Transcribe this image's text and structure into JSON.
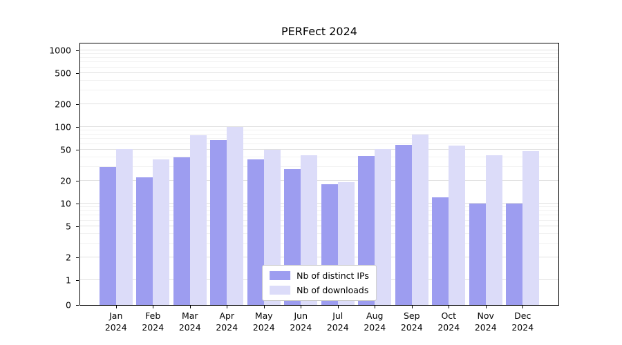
{
  "title": "PERFect 2024",
  "chart_data": {
    "type": "bar",
    "title": "PERFect 2024",
    "xlabel": "",
    "ylabel": "",
    "yscale": "symlog",
    "grid": true,
    "legend_position": "lower center",
    "ylim": [
      0,
      1200
    ],
    "y_ticks": [
      0,
      1,
      2,
      5,
      10,
      20,
      50,
      100,
      200,
      500,
      1000
    ],
    "categories": [
      "Jan 2024",
      "Feb 2024",
      "Mar 2024",
      "Apr 2024",
      "May 2024",
      "Jun 2024",
      "Jul 2024",
      "Aug 2024",
      "Sep 2024",
      "Oct 2024",
      "Nov 2024",
      "Dec 2024"
    ],
    "series": [
      {
        "name": "Nb of distinct IPs",
        "color": "#9d9df0",
        "values": [
          30,
          22,
          40,
          68,
          38,
          28,
          18,
          42,
          58,
          12,
          10,
          10
        ]
      },
      {
        "name": "Nb of downloads",
        "color": "#dcdcf9",
        "values": [
          52,
          38,
          78,
          100,
          50,
          43,
          19,
          52,
          80,
          57,
          43,
          48
        ]
      }
    ]
  },
  "colors": {
    "axis": "#000000",
    "grid_major": "#e0e0e0",
    "grid_minor": "#f1f1f1",
    "background": "#ffffff",
    "legend_border": "#cccccc"
  }
}
